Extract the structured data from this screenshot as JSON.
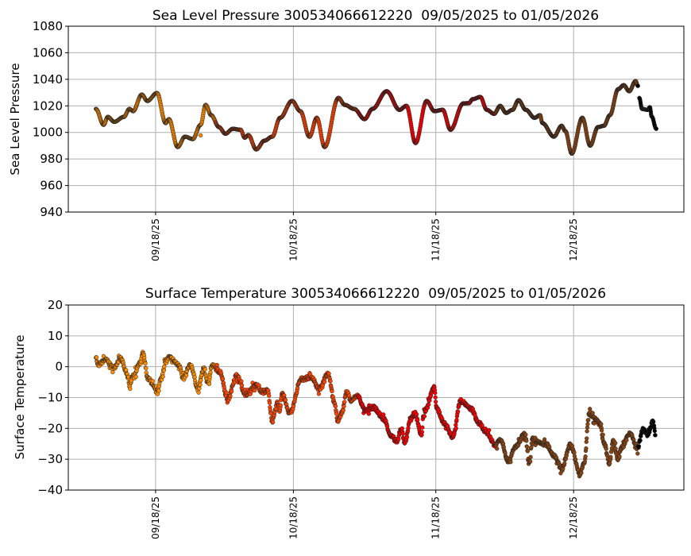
{
  "chart_data": [
    {
      "type": "scatter",
      "title": "Sea Level Pressure 300534066612220  09/05/2025 to 01/05/2026",
      "xlabel": "",
      "ylabel": "Sea Level Pressure",
      "x_units": "days since 09/05/2025",
      "xlim": [
        -6,
        128
      ],
      "ylim": [
        940,
        1080
      ],
      "yticks": [
        940,
        960,
        980,
        1000,
        1020,
        1040,
        1060,
        1080
      ],
      "xticks": [
        {
          "day": 13,
          "label": "09/18/25"
        },
        {
          "day": 43,
          "label": "10/18/25"
        },
        {
          "day": 74,
          "label": "11/18/25"
        },
        {
          "day": 104,
          "label": "12/18/25"
        }
      ],
      "grid": true,
      "series": [
        {
          "x": [
            0,
            1.7,
            2.6,
            4.0,
            6.1,
            7.3,
            8.1,
            10.0,
            11.2,
            13.3,
            15.2,
            15.9,
            17.8,
            19.4,
            21.1,
            22.8,
            23.9,
            25.1,
            26.8,
            28.2,
            29.8,
            31.5,
            32.4,
            33.2,
            34.9,
            36.7,
            38.4,
            40.1,
            42.7,
            44.5,
            46.5,
            48.1,
            49.8,
            52.8,
            54.2,
            56.2,
            58.5,
            60.2,
            63.3,
            66.1,
            67.6,
            69.6,
            72.0,
            73.7,
            75.5,
            77.2,
            80.0,
            81.2,
            82.0,
            83.7,
            85.1,
            86.7,
            88.0,
            89.3,
            90.7,
            92.0,
            93.6,
            95.5,
            96.7,
            97.2,
            99.7,
            101.4,
            102.2,
            103.6,
            105.9,
            107.6,
            109.3,
            110.6,
            111.9,
            113.7,
            114.9,
            116.1,
            117.5,
            118.0
          ],
          "y": [
            1017.7,
            1005.7,
            1011.7,
            1008,
            1011.7,
            1017.7,
            1016,
            1028.5,
            1023.7,
            1029.7,
            1007,
            1010,
            989,
            996.8,
            995,
            1005.7,
            1020.7,
            1013,
            1004,
            999,
            1002.7,
            1002,
            996,
            998,
            987.2,
            993.8,
            996.8,
            1011,
            1023.7,
            1016,
            996.8,
            1011,
            989,
            1026,
            1020.7,
            1017.7,
            1010,
            1017.7,
            1031,
            1017,
            1020,
            992,
            1023.7,
            1016,
            1017,
            1002,
            1021.9,
            1022,
            1025,
            1026.7,
            1017,
            1014,
            1020,
            1014.7,
            1017,
            1024.3,
            1017,
            1011,
            1013,
            1007,
            996.8,
            1005,
            1001,
            984,
            1011,
            990,
            1004,
            1005,
            1013,
            1032.6,
            1035.6,
            1031,
            1038.7,
            1035
          ]
        },
        {
          "x": [
            118.3,
            118.9,
            120.1,
            120.6,
            121.0,
            122.0
          ],
          "y": [
            1026,
            1017.7,
            1017,
            1019,
            1012,
            1002.7
          ]
        },
        {
          "x": [
            22.8
          ],
          "y": [
            997.8
          ],
          "isolated": true
        }
      ],
      "noise": 0
    },
    {
      "type": "scatter",
      "title": "Surface Temperature 300534066612220  09/05/2025 to 01/05/2026",
      "xlabel": "",
      "ylabel": "Surface Temperature",
      "x_units": "days since 09/05/2025",
      "xlim": [
        -6,
        128
      ],
      "ylim": [
        -40,
        20
      ],
      "yticks": [
        -40,
        -30,
        -20,
        -10,
        0,
        10,
        20
      ],
      "xticks": [
        {
          "day": 13,
          "label": "09/18/25"
        },
        {
          "day": 43,
          "label": "10/18/25"
        },
        {
          "day": 74,
          "label": "11/18/25"
        },
        {
          "day": 104,
          "label": "12/18/25"
        }
      ],
      "grid": true,
      "series": [
        {
          "x": [
            0,
            0.4,
            2.1,
            3.8,
            5.4,
            6.7,
            7.3,
            8.1,
            9.7,
            10.2,
            11.4,
            13.3,
            14.2,
            15.1,
            15.9,
            18.3,
            18.9,
            20.6,
            22.3,
            23.5,
            24.4,
            25.3,
            27.0,
            28.7,
            30.6,
            32.7,
            34.9,
            36.2,
            37.4,
            38.4,
            39.6,
            40.0,
            40.5,
            42.2,
            44.8,
            46.9,
            48.6,
            50.5,
            52.1,
            52.6,
            53.5,
            54.7,
            55.5,
            56.9,
            58.7,
            60.4,
            62.6,
            64.4,
            65.6,
            66.4,
            67.3,
            68.5,
            69.6,
            70.8,
            71.6,
            73.7,
            74.2,
            75.9,
            77.7,
            79.4,
            81.7,
            83.4,
            85.1,
            86.9,
            88.1,
            89.8,
            91.5,
            93.3,
            94.5,
            95.0,
            96.7,
            98.1,
            99.7,
            101.4,
            103.3,
            105.4,
            106.3,
            107.4,
            108.5,
            109.7,
            110.6,
            111.8,
            112.6,
            113.7,
            114.5,
            116.3,
            117.5,
            117.8,
            119.2,
            120.1,
            121.3,
            121.8
          ],
          "y": [
            3.5,
            0.5,
            2.2,
            -0.3,
            2.6,
            -2.1,
            -5.9,
            -2.9,
            1.3,
            4.3,
            -4,
            -8,
            -4,
            1.3,
            3,
            0.4,
            -4,
            0.4,
            -7.3,
            -0.4,
            -5.5,
            0.4,
            -1.6,
            -10.6,
            -2.9,
            -9.1,
            -6,
            -8,
            -7.8,
            -17.6,
            -11.7,
            -14.3,
            -8.6,
            -15,
            -4,
            -3.4,
            -7.3,
            -2.1,
            -12.4,
            -17.6,
            -15,
            -8,
            -11.1,
            -9.4,
            -14.3,
            -13.2,
            -16.8,
            -22.7,
            -24.5,
            -20.2,
            -24.5,
            -16.8,
            -15.5,
            -22,
            -14.3,
            -6.8,
            -13.7,
            -18.4,
            -22.7,
            -11.1,
            -13.7,
            -18.4,
            -21.5,
            -25.3,
            -23.5,
            -30.5,
            -25.8,
            -22,
            -31.2,
            -23.5,
            -24.8,
            -25.3,
            -28.7,
            -33,
            -25.3,
            -34.8,
            -31.2,
            -15,
            -16.8,
            -18.4,
            -24.5,
            -31.2,
            -24,
            -29.7,
            -26.1,
            -21.5,
            -25.3,
            -26.6,
            -20.2,
            -22.2,
            -17.6,
            -22.2
          ]
        }
      ],
      "noise": 1.2
    }
  ],
  "month_colors": [
    {
      "from_day": 0,
      "color": "#FF8C00"
    },
    {
      "from_day": 26,
      "color": "#FF4500"
    },
    {
      "from_day": 57,
      "color": "#FF0000"
    },
    {
      "from_day": 87,
      "color": "#8B4513"
    },
    {
      "from_day": 118,
      "color": "#000000"
    }
  ]
}
